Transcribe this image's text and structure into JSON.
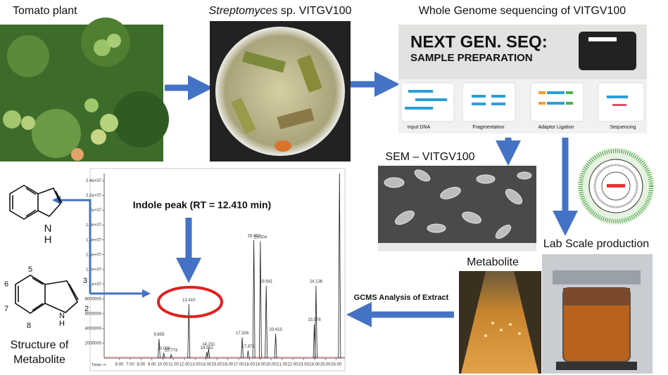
{
  "labels": {
    "tomato": "Tomato plant",
    "strep_genus": "Streptomyces",
    "strep_rest": "sp. VITGV100",
    "wgs": "Whole Genome sequencing of VITGV100",
    "ngs_title": "NEXT GEN. SEQ:",
    "ngs_sub": "SAMPLE PREPARATION",
    "ngs_steps": [
      "Input DNA",
      "Fragmentation",
      "Adaptor Ligation",
      "Sequencing"
    ],
    "sem": "SEM – VITGV100",
    "lab": "Lab Scale production",
    "metabolite": "Metabolite",
    "gcms": "GCMS Analysis of Extract",
    "indole": "Indole peak (RT = 12.410 min)",
    "structure_1": "Structure of",
    "structure_2": "Metabolite",
    "atoms": {
      "h_top": "H",
      "n_top": "N",
      "h_bottom": "H",
      "n_bottom": "N",
      "c2": "2",
      "c3": "3",
      "c5": "5",
      "c6": "6",
      "c7": "7",
      "c8": "8"
    }
  },
  "chart_data": {
    "type": "line",
    "x_label": "Time-->",
    "x": [
      9.659,
      10.098,
      10.774,
      12.41,
      14.062,
      14.231,
      17.326,
      17.871,
      18.403,
      19.004,
      19.541,
      20.413,
      23.978,
      24.136,
      26.3
    ],
    "values": [
      2600000,
      700000,
      500000,
      7300000,
      800000,
      1300000,
      2800000,
      1000000,
      16000000,
      15800000,
      9800000,
      3300000,
      4600000,
      9800000,
      25000000
    ],
    "peak_labels": [
      "9.659",
      "10.098",
      "10.774",
      "12.410",
      "14.062",
      "14.231",
      "17.326",
      "17.871",
      "18.403",
      "19.004",
      "19.541",
      "20.413",
      "23.978",
      "24.136",
      null
    ],
    "color": "#1a1a1a",
    "xlim": [
      4.6,
      26.8
    ],
    "xticks": [
      {
        "value": 6,
        "label": "6.00"
      },
      {
        "value": 7,
        "label": "7.00"
      },
      {
        "value": 8,
        "label": "8.00"
      },
      {
        "value": 9,
        "label": "9.00"
      },
      {
        "value": 10,
        "label": "10.00"
      },
      {
        "value": 11,
        "label": "11.00"
      },
      {
        "value": 12,
        "label": "12.00"
      },
      {
        "value": 13,
        "label": "13.00"
      },
      {
        "value": 14,
        "label": "14.00"
      },
      {
        "value": 15,
        "label": "15.00"
      },
      {
        "value": 16,
        "label": "16.00"
      },
      {
        "value": 17,
        "label": "17.00"
      },
      {
        "value": 18,
        "label": "18.00"
      },
      {
        "value": 19,
        "label": "19.00"
      },
      {
        "value": 20,
        "label": "20.00"
      },
      {
        "value": 21,
        "label": "21.00"
      },
      {
        "value": 22,
        "label": "22.00"
      },
      {
        "value": 23,
        "label": "23.00"
      },
      {
        "value": 24,
        "label": "24.00"
      },
      {
        "value": 25,
        "label": "25.00"
      },
      {
        "value": 26,
        "label": "26.00"
      }
    ],
    "ylim": [
      0,
      25000000
    ],
    "yticks": [
      2000000,
      4000000,
      6000000,
      8000000,
      {
        "value": 10000000,
        "label": "1e+07"
      },
      {
        "value": 12000000,
        "label": "1.2e+07"
      },
      {
        "value": 14000000,
        "label": "1.4e+07"
      },
      {
        "value": 16000000,
        "label": "1.6e+07"
      },
      {
        "value": 18000000,
        "label": "1.8e+07"
      },
      {
        "value": 20000000,
        "label": "2e+07"
      },
      {
        "value": 22000000,
        "label": "2.2e+07"
      },
      {
        "value": 24000000,
        "label": "2.4e+07"
      }
    ]
  }
}
